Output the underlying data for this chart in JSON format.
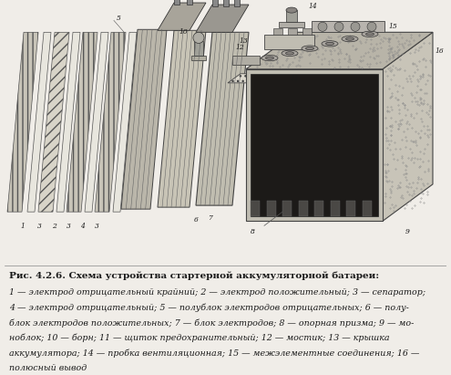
{
  "bg": "#f0ede8",
  "fg": "#1a1a1a",
  "title": "Рис. 4.2.6. Схема устройства стартерной аккумуляторной батареи:",
  "lines": [
    "1 — электрод отрицательный крайний; 2 — электрод положительный; 3 — сепаратор;",
    "4 — электрод отрицательный; 5 — полублок электродов отрицательных; 6 — полу-",
    "блок электродов положительных; 7 — блок электродов; 8 — опорная призма; 9 — мо-",
    "ноблок; 10 — борн; 11 — щиток предохранительный; 12 — мостик; 13 — крышка",
    "аккумулятора; 14 — пробка вентиляционная; 15 — межэлементные соединения; 16 —",
    "полюсный вывод"
  ],
  "title_fs": 7.5,
  "body_fs": 6.8,
  "dpi": 100,
  "fw": 4.95,
  "fh": 4.11
}
